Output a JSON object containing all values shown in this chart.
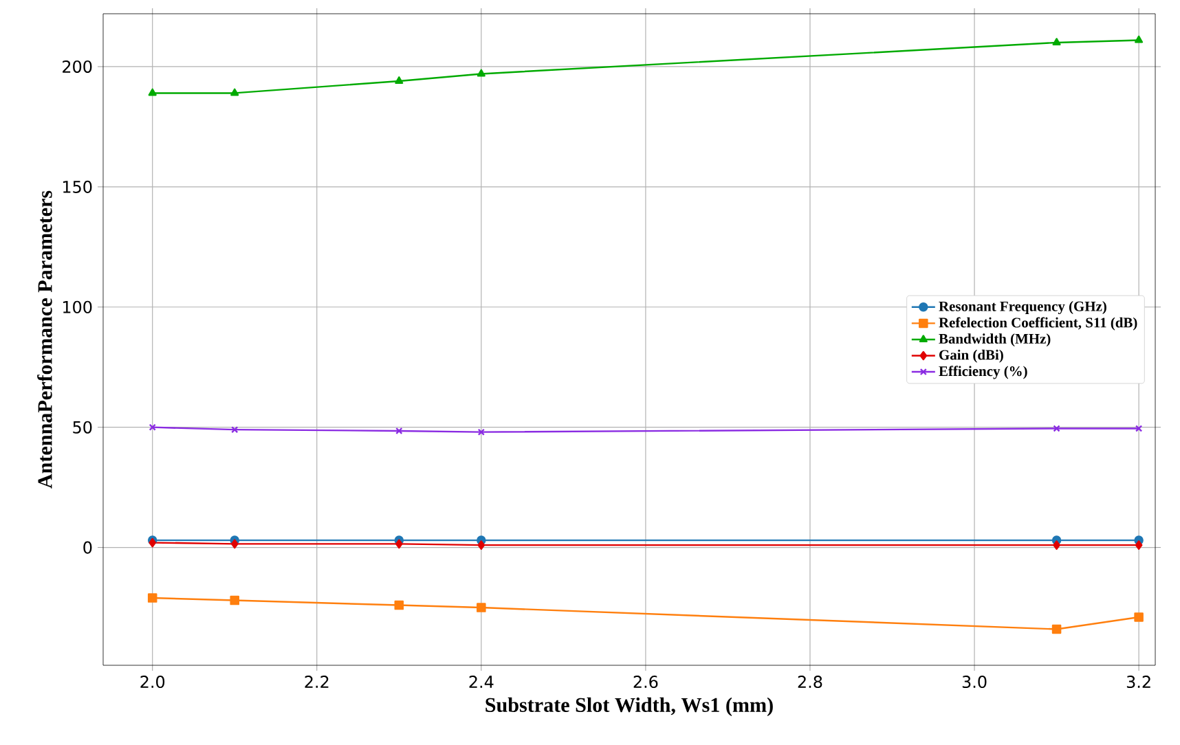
{
  "chart_data": {
    "type": "line",
    "xlabel": "Substrate Slot Width, Ws1 (mm)",
    "ylabel": "AntennaPerformance Parameters",
    "x": [
      2.0,
      2.1,
      2.3,
      2.4,
      3.1,
      3.2
    ],
    "series": [
      {
        "name": "Resonant Frequency (GHz)",
        "color": "#1f77b4",
        "marker": "circle",
        "values": [
          3,
          3,
          3,
          3,
          3,
          3
        ]
      },
      {
        "name": "Refelection Coefficient, S11 (dB)",
        "color": "#ff7f0e",
        "marker": "square",
        "values": [
          -21,
          -22,
          -24,
          -25,
          -34,
          -29
        ]
      },
      {
        "name": "Bandwidth (MHz)",
        "color": "#00aa00",
        "marker": "triangle",
        "values": [
          189,
          189,
          194,
          197,
          210,
          211
        ]
      },
      {
        "name": "Gain (dBi)",
        "color": "#e00000",
        "marker": "diamond",
        "values": [
          2,
          1.5,
          1.5,
          1,
          1,
          1
        ]
      },
      {
        "name": "Efficiency (%)",
        "color": "#8a2be2",
        "marker": "cross",
        "values": [
          50,
          49,
          48.5,
          48,
          49.5,
          49.5
        ]
      }
    ],
    "xlim": [
      1.94,
      3.22
    ],
    "ylim": [
      -49,
      222
    ],
    "xticks": [
      {
        "value": 2,
        "label": "2.0"
      },
      2.2,
      2.4,
      2.6,
      2.8,
      {
        "value": 3,
        "label": "3.0"
      },
      3.2
    ],
    "yticks": [
      0,
      50,
      100,
      150,
      200
    ],
    "grid": true,
    "legend": "center right"
  }
}
